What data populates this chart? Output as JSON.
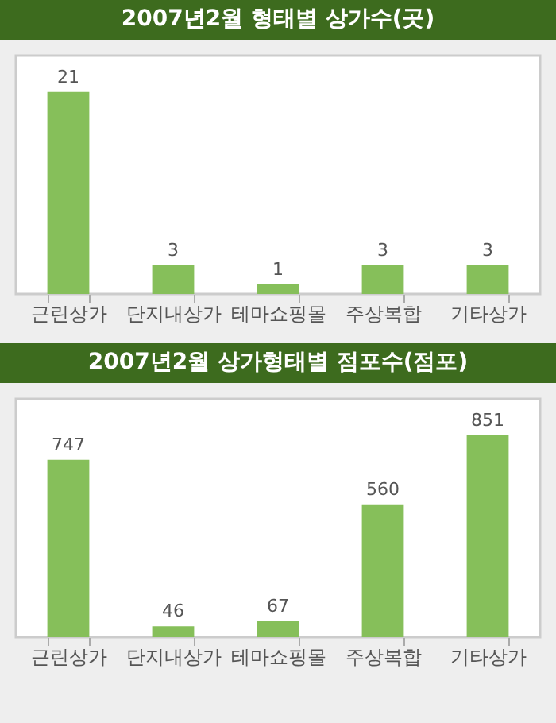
{
  "chart_data": [
    {
      "type": "bar",
      "title": "2007년2월 형태별 상가수(곳)",
      "categories": [
        "근린상가",
        "단지내상가",
        "테마쇼핑몰",
        "주상복합",
        "기타상가"
      ],
      "values": [
        21,
        3,
        1,
        3,
        3
      ],
      "color": "#86bf5a",
      "data_labels": true
    },
    {
      "type": "bar",
      "title": "2007년2월 상가형태별 점포수(점포)",
      "categories": [
        "근린상가",
        "단지내상가",
        "테마쇼핑몰",
        "주상복합",
        "기타상가"
      ],
      "values": [
        747,
        46,
        67,
        560,
        851
      ],
      "color": "#86bf5a",
      "data_labels": true
    }
  ]
}
